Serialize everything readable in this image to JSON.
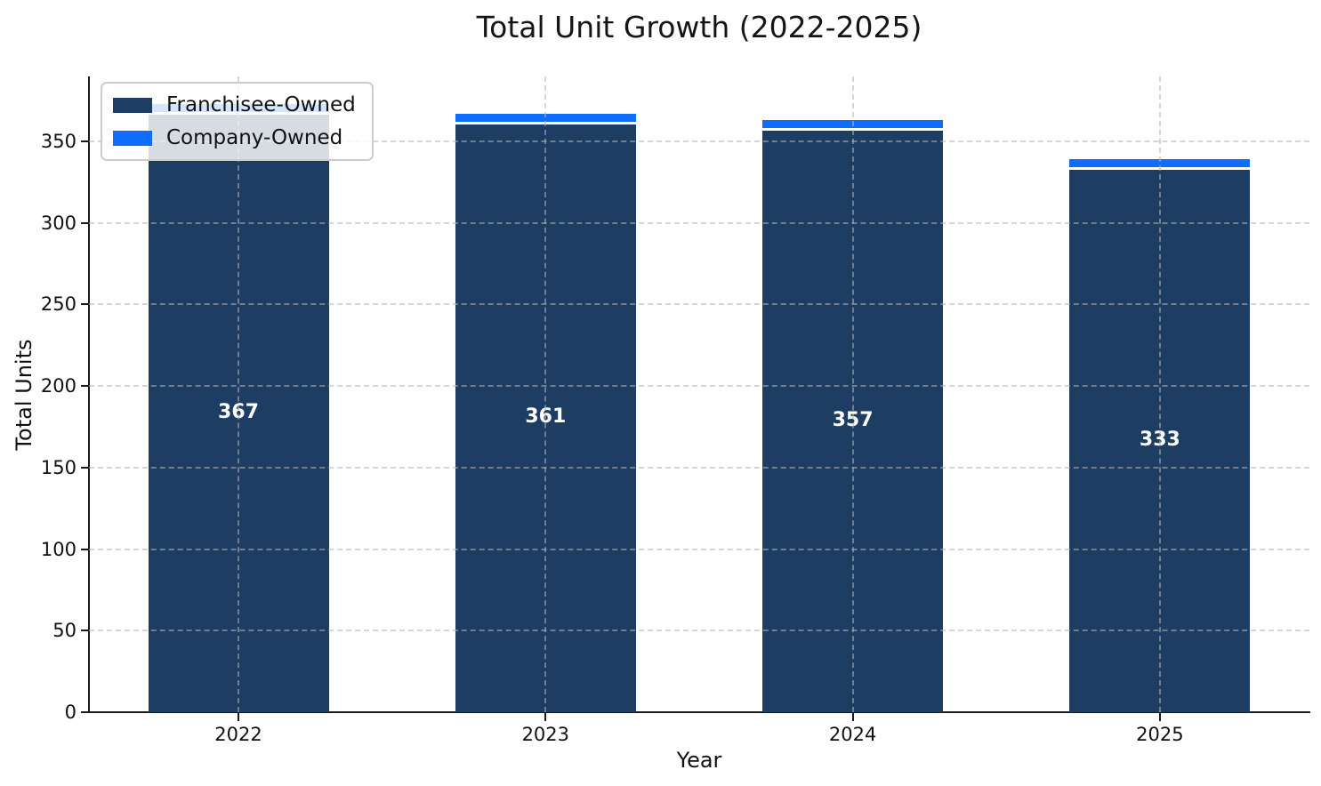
{
  "chart_data": {
    "type": "bar",
    "stacked": true,
    "title": "Total Unit Growth (2022-2025)",
    "xlabel": "Year",
    "ylabel": "Total Units",
    "categories": [
      "2022",
      "2023",
      "2024",
      "2025"
    ],
    "series": [
      {
        "name": "Franchisee-Owned",
        "color": "#1d3d62",
        "values": [
          367,
          361,
          357,
          333
        ]
      },
      {
        "name": "Company-Owned",
        "color": "#0f6dfc",
        "values": [
          6,
          6,
          6,
          6
        ]
      }
    ],
    "stack_totals": [
      373,
      367,
      363,
      339
    ],
    "bar_value_labels": [
      "367",
      "361",
      "357",
      "333"
    ],
    "bar_value_label_color": "#ffffff",
    "yticks": [
      0,
      50,
      100,
      150,
      200,
      250,
      300,
      350
    ],
    "ylim": [
      0,
      390
    ],
    "grid": {
      "axes": "both",
      "style": "dashed",
      "color": "#b4b4b4",
      "over_bars": true
    },
    "bar_edge_color": "#ffffff",
    "legend": {
      "position": "upper-left",
      "entries": [
        "Franchisee-Owned",
        "Company-Owned"
      ]
    }
  }
}
